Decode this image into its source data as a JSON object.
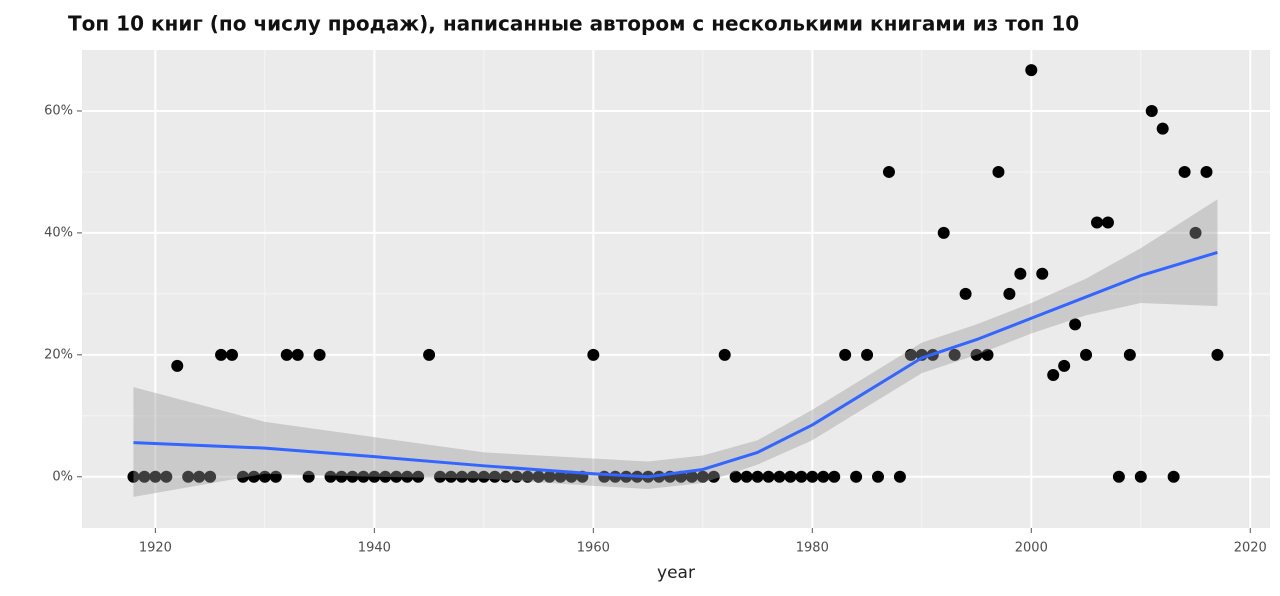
{
  "chart_data": {
    "type": "scatter",
    "title": "Топ 10 книг (по числу продаж), написанные автором с несколькими книгами из топ 10",
    "x_label": "year",
    "x": [
      1918,
      1919,
      1920,
      1921,
      1922,
      1923,
      1924,
      1925,
      1926,
      1927,
      1928,
      1929,
      1930,
      1931,
      1932,
      1933,
      1934,
      1935,
      1936,
      1937,
      1938,
      1939,
      1940,
      1941,
      1942,
      1943,
      1944,
      1945,
      1946,
      1947,
      1948,
      1949,
      1950,
      1951,
      1952,
      1953,
      1954,
      1955,
      1956,
      1957,
      1958,
      1959,
      1960,
      1961,
      1962,
      1963,
      1964,
      1965,
      1966,
      1967,
      1968,
      1969,
      1970,
      1971,
      1972,
      1973,
      1974,
      1975,
      1976,
      1977,
      1978,
      1979,
      1980,
      1981,
      1982,
      1983,
      1984,
      1985,
      1986,
      1987,
      1988,
      1989,
      1990,
      1991,
      1992,
      1993,
      1994,
      1995,
      1996,
      1997,
      1998,
      1999,
      2000,
      2001,
      2002,
      2003,
      2004,
      2005,
      2006,
      2007,
      2008,
      2009,
      2010,
      2011,
      2012,
      2013,
      2014,
      2015,
      2016,
      2017
    ],
    "values": [
      0,
      0,
      0,
      0,
      18.2,
      0,
      0,
      0,
      20,
      20,
      0,
      0,
      0,
      0,
      20,
      20,
      0,
      20,
      0,
      0,
      0,
      0,
      0,
      0,
      0,
      0,
      0,
      20,
      0,
      0,
      0,
      0,
      0,
      0,
      0,
      0,
      0,
      0,
      0,
      0,
      0,
      0,
      20,
      0,
      0,
      0,
      0,
      0,
      0,
      0,
      0,
      0,
      0,
      0,
      20,
      0,
      0,
      0,
      0,
      0,
      0,
      0,
      0,
      0,
      0,
      20,
      0,
      20,
      0,
      50,
      0,
      20,
      20,
      20,
      40,
      20,
      30,
      20,
      20,
      50,
      30,
      33.3,
      66.7,
      33.3,
      16.7,
      18.2,
      25,
      20,
      41.7,
      41.7,
      0,
      20,
      0,
      60,
      57.1,
      0,
      50,
      40,
      50,
      20
    ],
    "color": "#000000",
    "fit_x": [
      1918,
      1930,
      1940,
      1950,
      1960,
      1965,
      1970,
      1975,
      1980,
      1985,
      1990,
      1995,
      2000,
      2005,
      2010,
      2017
    ],
    "fit": [
      5.6,
      4.7,
      3.3,
      1.8,
      0.5,
      0,
      1.2,
      4,
      8.5,
      14,
      19.5,
      22.5,
      26,
      29.5,
      33,
      36.8
    ],
    "fit_lower": [
      -3.3,
      0.5,
      0,
      -0.3,
      -1.5,
      -2,
      -1,
      2,
      6,
      11.5,
      17,
      20,
      23.5,
      26.5,
      28.5,
      28
    ],
    "fit_upper": [
      14.7,
      9,
      6.5,
      4,
      3,
      2.5,
      3.5,
      6,
      11,
      16.5,
      22,
      25,
      28.5,
      32.5,
      37.5,
      45.5
    ],
    "fit_color": "#3366ff",
    "band_color": "#999999",
    "xlim": [
      1913.3,
      2021.8
    ],
    "ylim": [
      -8.4,
      70
    ],
    "xticks": [
      1920,
      1940,
      1960,
      1980,
      2000,
      2020
    ],
    "yticks": [
      {
        "value": 0,
        "label": "0%"
      },
      {
        "value": 20,
        "label": "20%"
      },
      {
        "value": 40,
        "label": "40%"
      },
      {
        "value": 60,
        "label": "60%"
      }
    ],
    "grid": true
  }
}
